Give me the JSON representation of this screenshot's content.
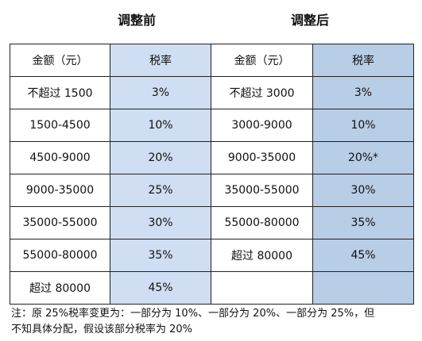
{
  "titles": {
    "before": "调整前",
    "after": "调整后"
  },
  "header": [
    "金额（元）",
    "税率",
    "金额（元）",
    "税率"
  ],
  "rows": [
    [
      "不超过 1500",
      "3%",
      "不超过 3000",
      "3%"
    ],
    [
      "1500-4500",
      "10%",
      "3000-9000",
      "10%"
    ],
    [
      "4500-9000",
      "20%",
      "9000-35000",
      "20%*"
    ],
    [
      "9000-35000",
      "25%",
      "35000-55000",
      "30%"
    ],
    [
      "35000-55000",
      "30%",
      "55000-80000",
      "35%"
    ],
    [
      "55000-80000",
      "35%",
      "超过 80000",
      "45%"
    ],
    [
      "超过 80000",
      "45%",
      "",
      ""
    ]
  ],
  "note": {
    "line1": "注：原 25%税率变更为：一部分为 10%、一部分为 20%、一部分为 25%，但",
    "line2": "不知具体分配，假设该部分税率为 20%"
  },
  "colors": {
    "before_rate_bg": "#cfdef3",
    "after_rate_bg": "#b8cde6"
  }
}
